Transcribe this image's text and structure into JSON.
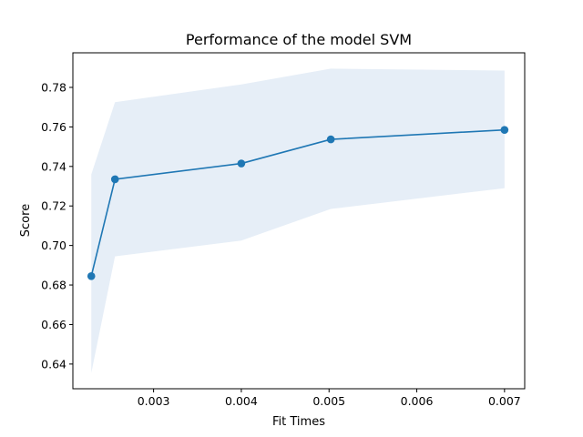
{
  "chart_data": {
    "type": "line",
    "title": "Performance of the model SVM",
    "xlabel": "Fit Times",
    "ylabel": "Score",
    "xlim": [
      0.00208,
      0.00723
    ],
    "ylim": [
      0.6275,
      0.7975
    ],
    "xticks": [
      {
        "value": 0.003,
        "label": "0.003"
      },
      {
        "value": 0.004,
        "label": "0.004"
      },
      {
        "value": 0.005,
        "label": "0.005"
      },
      {
        "value": 0.006,
        "label": "0.006"
      },
      {
        "value": 0.007,
        "label": "0.007"
      }
    ],
    "yticks": [
      {
        "value": 0.64,
        "label": "0.64"
      },
      {
        "value": 0.66,
        "label": "0.66"
      },
      {
        "value": 0.68,
        "label": "0.68"
      },
      {
        "value": 0.7,
        "label": "0.70"
      },
      {
        "value": 0.72,
        "label": "0.72"
      },
      {
        "value": 0.74,
        "label": "0.74"
      },
      {
        "value": 0.76,
        "label": "0.76"
      },
      {
        "value": 0.78,
        "label": "0.78"
      }
    ],
    "grid": false,
    "series": [
      {
        "x": [
          0.00229,
          0.00256,
          0.004,
          0.00502,
          0.007
        ],
        "y": [
          0.6845,
          0.7335,
          0.7415,
          0.7537,
          0.7585
        ],
        "lower": [
          0.6355,
          0.6945,
          0.7025,
          0.7185,
          0.729
        ],
        "upper": [
          0.736,
          0.7725,
          0.7815,
          0.7895,
          0.7885
        ],
        "color": "#1f77b4",
        "band_color": "#e6eef7"
      }
    ]
  }
}
